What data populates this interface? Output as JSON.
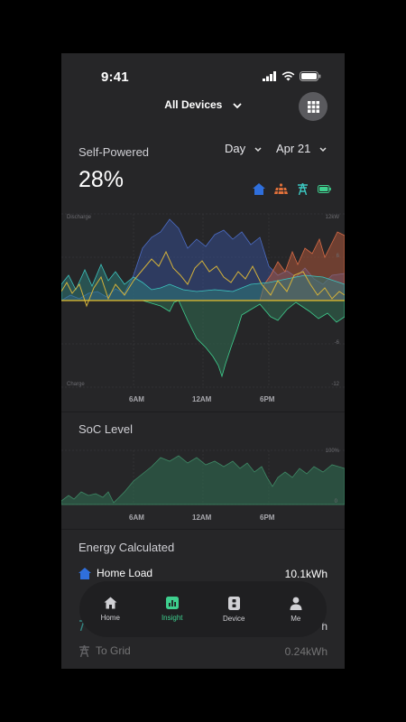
{
  "status": {
    "time": "9:41"
  },
  "header": {
    "device_selector": "All Devices"
  },
  "self_powered": {
    "title": "Self-Powered",
    "value": "28%",
    "period": "Day",
    "date": "Apr 21",
    "legend_icons": [
      "home-icon",
      "solar-panel-icon",
      "grid-tower-icon",
      "battery-icon"
    ],
    "colors": {
      "home": "#2f6fdc",
      "solar": "#e0703a",
      "grid": "#3cc6c0",
      "battery": "#3ecf8e"
    },
    "axis": {
      "top_left": "Discharge",
      "bottom_left": "Charge",
      "right_ticks": [
        "12kW",
        "6",
        "-6",
        "-12"
      ]
    },
    "x_ticks": [
      "6AM",
      "12AM",
      "6PM"
    ]
  },
  "soc": {
    "title": "SoC Level",
    "axis": {
      "top": "100%",
      "bottom": "0"
    },
    "x_ticks": [
      "6AM",
      "12AM",
      "6PM"
    ]
  },
  "energy": {
    "title": "Energy Calculated",
    "rows": [
      {
        "label": "Home Load",
        "value": "10.1kWh",
        "icon": "home-icon"
      },
      {
        "label": "",
        "value": "h",
        "icon": "grid-tower-icon"
      },
      {
        "label": "To Grid",
        "value": "0.24kWh",
        "icon": "grid-tower-icon"
      }
    ]
  },
  "nav": {
    "items": [
      {
        "label": "Home",
        "icon": "home-icon"
      },
      {
        "label": "Insight",
        "icon": "chart-icon"
      },
      {
        "label": "Device",
        "icon": "device-icon"
      },
      {
        "label": "Me",
        "icon": "person-icon"
      }
    ],
    "active_color": "#3ecf8e"
  }
}
